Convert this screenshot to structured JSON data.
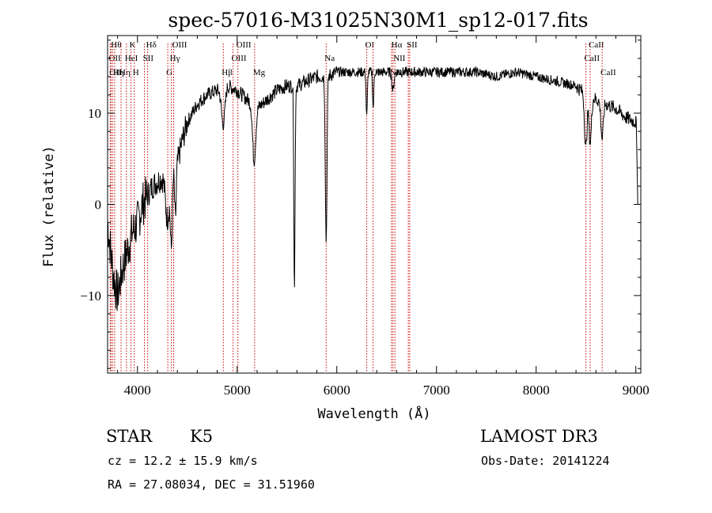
{
  "chart_data": {
    "type": "line",
    "title": "spec-57016-M31025N30M1_sp12-017.fits",
    "xlabel": "Wavelength (Å)",
    "ylabel": "Flux (relative)",
    "xlim": [
      3700,
      9050
    ],
    "ylim": [
      -18.5,
      18.5
    ],
    "x_ticks": [
      4000,
      5000,
      6000,
      7000,
      8000,
      9000
    ],
    "x_tick_labels": [
      "4000",
      "5000",
      "6000",
      "7000",
      "8000",
      "9000"
    ],
    "y_ticks": [
      -10,
      0,
      10
    ],
    "y_tick_labels": [
      "−10",
      "0",
      "10"
    ],
    "line_color": "#000000",
    "marker_color": "#cc0000",
    "spectrum": {
      "name": "flux",
      "anchors": [
        [
          3700,
          -2
        ],
        [
          3760,
          -8
        ],
        [
          3800,
          -10
        ],
        [
          3850,
          -7
        ],
        [
          3900,
          -5
        ],
        [
          3950,
          -3
        ],
        [
          4000,
          -2
        ],
        [
          4050,
          0
        ],
        [
          4100,
          1
        ],
        [
          4150,
          2
        ],
        [
          4200,
          2.5
        ],
        [
          4250,
          3
        ],
        [
          4300,
          3.5
        ],
        [
          4350,
          3.8
        ],
        [
          4400,
          4.5
        ],
        [
          4450,
          7
        ],
        [
          4500,
          9
        ],
        [
          4550,
          10
        ],
        [
          4600,
          11
        ],
        [
          4700,
          12
        ],
        [
          4800,
          12.5
        ],
        [
          4900,
          13
        ],
        [
          5000,
          12.5
        ],
        [
          5100,
          11.5
        ],
        [
          5200,
          10.5
        ],
        [
          5300,
          11.5
        ],
        [
          5400,
          12.5
        ],
        [
          5500,
          13
        ],
        [
          5600,
          13
        ],
        [
          5700,
          13.5
        ],
        [
          5800,
          14
        ],
        [
          5900,
          14
        ],
        [
          6000,
          14.5
        ],
        [
          6100,
          14.5
        ],
        [
          6200,
          14.5
        ],
        [
          6300,
          14.5
        ],
        [
          6400,
          14.5
        ],
        [
          6500,
          14.5
        ],
        [
          6600,
          14.5
        ],
        [
          6700,
          14.5
        ],
        [
          6800,
          14.5
        ],
        [
          7000,
          14.5
        ],
        [
          7200,
          14.5
        ],
        [
          7400,
          14.5
        ],
        [
          7600,
          14
        ],
        [
          7800,
          14.5
        ],
        [
          8000,
          14
        ],
        [
          8200,
          13.5
        ],
        [
          8400,
          13
        ],
        [
          8500,
          12
        ],
        [
          8600,
          11.5
        ],
        [
          8700,
          11
        ],
        [
          8800,
          10.5
        ],
        [
          8900,
          9.5
        ],
        [
          9000,
          9
        ]
      ],
      "dips": [
        [
          4300,
          5,
          20
        ],
        [
          4340,
          8,
          10
        ],
        [
          4380,
          6,
          8
        ],
        [
          4860,
          4,
          18
        ],
        [
          5170,
          6,
          15
        ],
        [
          5575,
          22.5,
          6
        ],
        [
          5893,
          18,
          8
        ],
        [
          6300,
          5,
          6
        ],
        [
          6365,
          4,
          6
        ],
        [
          6563,
          2,
          10
        ],
        [
          8498,
          6,
          12
        ],
        [
          8542,
          5,
          12
        ],
        [
          8662,
          4,
          12
        ]
      ],
      "end_point": [
        9020,
        0
      ]
    },
    "line_markers": [
      {
        "wavelength": 3727,
        "label": "OII",
        "row": 1
      },
      {
        "wavelength": 3734,
        "label": "OII",
        "row": 2
      },
      {
        "wavelength": 3750,
        "label": "Hθ",
        "row": 0
      },
      {
        "wavelength": 3771,
        "label": "Hη",
        "row": 2
      },
      {
        "wavelength": 3835,
        "label": "Hη",
        "row": 2
      },
      {
        "wavelength": 3889,
        "label": "HeI",
        "row": 1
      },
      {
        "wavelength": 3934,
        "label": "K",
        "row": 0
      },
      {
        "wavelength": 3968,
        "label": "H",
        "row": 2
      },
      {
        "wavelength": 4070,
        "label": "SII",
        "row": 1
      },
      {
        "wavelength": 4102,
        "label": "Hδ",
        "row": 0
      },
      {
        "wavelength": 4304,
        "label": "G",
        "row": 2
      },
      {
        "wavelength": 4340,
        "label": "Hγ",
        "row": 1
      },
      {
        "wavelength": 4363,
        "label": "OIII",
        "row": 0
      },
      {
        "wavelength": 4861,
        "label": "Hβ",
        "row": 2
      },
      {
        "wavelength": 4959,
        "label": "OIII",
        "row": 1
      },
      {
        "wavelength": 5007,
        "label": "OIII",
        "row": 0
      },
      {
        "wavelength": 5175,
        "label": "Mg",
        "row": 2
      },
      {
        "wavelength": 5893,
        "label": "Na",
        "row": 1
      },
      {
        "wavelength": 6300,
        "label": "OI",
        "row": 0
      },
      {
        "wavelength": 6364,
        "label": "OI",
        "row": 2
      },
      {
        "wavelength": 6548,
        "label": "NII",
        "row": 2
      },
      {
        "wavelength": 6563,
        "label": "Hα",
        "row": 0
      },
      {
        "wavelength": 6583,
        "label": "NII",
        "row": 1
      },
      {
        "wavelength": 6717,
        "label": "SII",
        "row": 0
      },
      {
        "wavelength": 6731,
        "label": "SII",
        "row": 2
      },
      {
        "wavelength": 8498,
        "label": "CaII",
        "row": 1
      },
      {
        "wavelength": 8542,
        "label": "CaII",
        "row": 0
      },
      {
        "wavelength": 8662,
        "label": "CaII",
        "row": 2
      }
    ]
  },
  "info": {
    "object_class": "STAR",
    "subclass": "K5",
    "survey": "LAMOST DR3",
    "redshift": "cz = 12.2 ± 15.9 km/s",
    "obs_date": "Obs-Date: 20141224",
    "coords": "RA =  27.08034, DEC =  31.51960"
  }
}
